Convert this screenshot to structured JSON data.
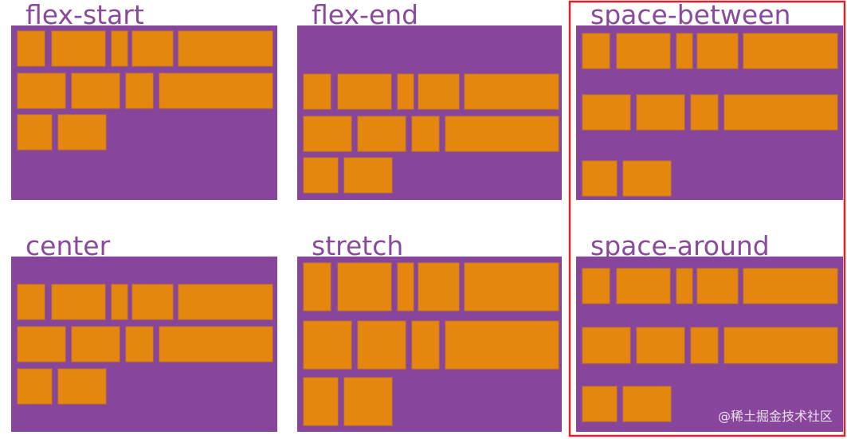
{
  "panels": [
    {
      "label": "flex-start"
    },
    {
      "label": "flex-end"
    },
    {
      "label": "space-between"
    },
    {
      "label": "center"
    },
    {
      "label": "stretch"
    },
    {
      "label": "space-around"
    }
  ],
  "watermark": "@稀土掘金技术社区"
}
